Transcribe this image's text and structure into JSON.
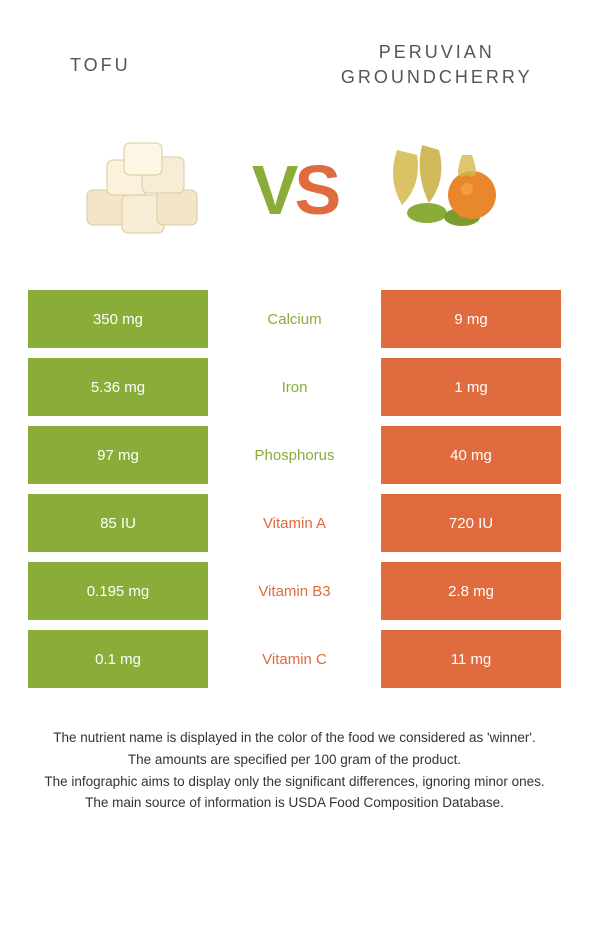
{
  "header": {
    "left_title": "Tofu",
    "right_title_line1": "Peruvian",
    "right_title_line2": "groundcherry"
  },
  "vs": {
    "v": "V",
    "s": "S"
  },
  "colors": {
    "left": "#8aad3a",
    "right": "#e06b3f",
    "text": "#555555",
    "white": "#ffffff"
  },
  "table": {
    "rows": [
      {
        "left": "350 mg",
        "nutrient": "Calcium",
        "right": "9 mg",
        "winner": "left"
      },
      {
        "left": "5.36 mg",
        "nutrient": "Iron",
        "right": "1 mg",
        "winner": "left"
      },
      {
        "left": "97 mg",
        "nutrient": "Phosphorus",
        "right": "40 mg",
        "winner": "left"
      },
      {
        "left": "85 IU",
        "nutrient": "Vitamin A",
        "right": "720 IU",
        "winner": "right"
      },
      {
        "left": "0.195 mg",
        "nutrient": "Vitamin B3",
        "right": "2.8 mg",
        "winner": "right"
      },
      {
        "left": "0.1 mg",
        "nutrient": "Vitamin C",
        "right": "11 mg",
        "winner": "right"
      }
    ]
  },
  "footer": {
    "line1": "The nutrient name is displayed in the color of the food we considered as 'winner'.",
    "line2": "The amounts are specified per 100 gram of the product.",
    "line3": "The infographic aims to display only the significant differences, ignoring minor ones.",
    "line4": "The main source of information is USDA Food Composition Database."
  }
}
